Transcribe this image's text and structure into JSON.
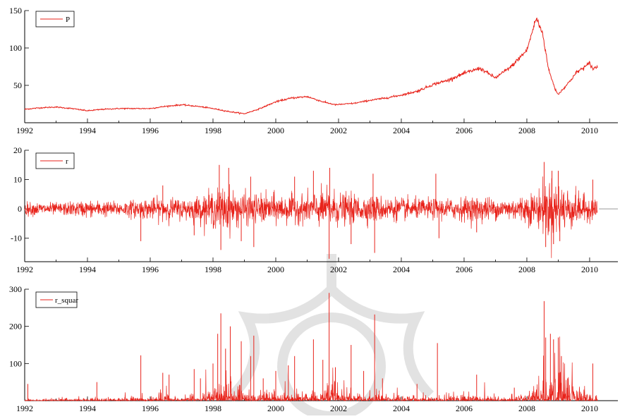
{
  "chart_data": [
    {
      "type": "line",
      "legend": "P",
      "legend_position": "top-left",
      "color": "#e8231b",
      "xlim": [
        1992,
        2010.9
      ],
      "ylim": [
        0,
        150
      ],
      "x_ticks": [
        1992,
        1994,
        1996,
        1998,
        2000,
        2002,
        2004,
        2006,
        2008,
        2010
      ],
      "y_ticks": [
        50,
        100,
        150
      ],
      "series": [
        {
          "name": "P",
          "x": [
            1992.0,
            1992.5,
            1993.0,
            1993.5,
            1994.0,
            1994.5,
            1995.0,
            1995.5,
            1996.0,
            1996.5,
            1997.0,
            1997.5,
            1998.0,
            1998.5,
            1999.0,
            1999.5,
            2000.0,
            2000.5,
            2001.0,
            2001.5,
            2001.9,
            2002.5,
            2003.0,
            2003.5,
            2004.0,
            2004.5,
            2005.0,
            2005.5,
            2006.0,
            2006.5,
            2007.0,
            2007.5,
            2008.0,
            2008.3,
            2008.5,
            2008.7,
            2008.9,
            2009.0,
            2009.3,
            2009.6,
            2009.9,
            2010.0,
            2010.1,
            2010.25
          ],
          "y": [
            18,
            20,
            21,
            19,
            16,
            18,
            19,
            19,
            19,
            22,
            24,
            22,
            19,
            15,
            12,
            19,
            28,
            33,
            35,
            28,
            24,
            26,
            30,
            33,
            37,
            42,
            51,
            57,
            66,
            73,
            60,
            75,
            97,
            140,
            120,
            70,
            45,
            38,
            52,
            68,
            76,
            80,
            72,
            75
          ]
        }
      ]
    },
    {
      "type": "line",
      "legend": "r",
      "legend_position": "top-left",
      "color": "#e8231b",
      "xlim": [
        1992,
        2010.9
      ],
      "ylim": [
        -18,
        20
      ],
      "x_ticks": [
        1992,
        1994,
        1996,
        1998,
        2000,
        2002,
        2004,
        2006,
        2008,
        2010
      ],
      "y_ticks": [
        -10,
        0,
        10,
        20
      ],
      "volatility_envelope": {
        "x": [
          1992.0,
          1993.0,
          1994.0,
          1995.0,
          1995.8,
          1996.5,
          1997.0,
          1997.6,
          1998.0,
          1998.4,
          1998.8,
          1999.2,
          2000.0,
          2000.7,
          2001.3,
          2001.7,
          2002.2,
          2002.8,
          2003.2,
          2003.8,
          2004.5,
          2005.2,
          2006.0,
          2006.6,
          2007.0,
          2007.6,
          2008.0,
          2008.4,
          2008.7,
          2008.9,
          2009.2,
          2009.6,
          2010.0,
          2010.25
        ],
        "y": [
          2,
          1.8,
          2.5,
          2.2,
          3,
          3.5,
          3,
          4,
          5.5,
          7,
          5,
          4.5,
          4.5,
          4,
          5,
          6,
          4.5,
          4,
          4,
          3.5,
          3,
          3,
          3.5,
          4,
          3,
          3.5,
          4.5,
          6,
          9,
          9,
          7,
          5,
          3.5,
          3
        ]
      },
      "extremes": [
        {
          "x": 1995.7,
          "y": -11
        },
        {
          "x": 1996.4,
          "y": 8
        },
        {
          "x": 1997.4,
          "y": -9
        },
        {
          "x": 1998.2,
          "y": 15
        },
        {
          "x": 1998.25,
          "y": -14
        },
        {
          "x": 1998.5,
          "y": 14
        },
        {
          "x": 1998.9,
          "y": -11
        },
        {
          "x": 1999.2,
          "y": 11
        },
        {
          "x": 1999.3,
          "y": -13
        },
        {
          "x": 2000.6,
          "y": 11
        },
        {
          "x": 2001.2,
          "y": 13
        },
        {
          "x": 2001.7,
          "y": -17
        },
        {
          "x": 2001.72,
          "y": 14
        },
        {
          "x": 2002.4,
          "y": -12
        },
        {
          "x": 2003.1,
          "y": 12
        },
        {
          "x": 2003.15,
          "y": -15
        },
        {
          "x": 2005.1,
          "y": 12
        },
        {
          "x": 2005.2,
          "y": -10
        },
        {
          "x": 2006.4,
          "y": -8
        },
        {
          "x": 2008.55,
          "y": 16
        },
        {
          "x": 2008.6,
          "y": -13
        },
        {
          "x": 2008.8,
          "y": 13
        },
        {
          "x": 2008.85,
          "y": -12
        },
        {
          "x": 2009.0,
          "y": 13
        },
        {
          "x": 2009.05,
          "y": -11
        },
        {
          "x": 2010.1,
          "y": 10
        }
      ],
      "baseline_tail": {
        "from": 2010.3,
        "to": 2010.9,
        "y": 0
      }
    },
    {
      "type": "line",
      "legend": "r_squar",
      "legend_position": "top-left",
      "color": "#e8231b",
      "xlim": [
        1992,
        2010.9
      ],
      "ylim": [
        0,
        300
      ],
      "x_ticks": [
        1992,
        1994,
        1996,
        1998,
        2000,
        2002,
        2004,
        2006,
        2008,
        2010
      ],
      "y_ticks": [
        100,
        200,
        300
      ],
      "spikes": [
        {
          "x": 1992.1,
          "y": 45
        },
        {
          "x": 1994.3,
          "y": 50
        },
        {
          "x": 1995.7,
          "y": 122
        },
        {
          "x": 1996.4,
          "y": 75
        },
        {
          "x": 1996.6,
          "y": 70
        },
        {
          "x": 1997.4,
          "y": 85
        },
        {
          "x": 1997.6,
          "y": 60
        },
        {
          "x": 1998.0,
          "y": 100
        },
        {
          "x": 1998.15,
          "y": 180
        },
        {
          "x": 1998.25,
          "y": 235
        },
        {
          "x": 1998.4,
          "y": 140
        },
        {
          "x": 1998.55,
          "y": 200
        },
        {
          "x": 1998.9,
          "y": 160
        },
        {
          "x": 1999.2,
          "y": 120
        },
        {
          "x": 1999.3,
          "y": 175
        },
        {
          "x": 1999.6,
          "y": 60
        },
        {
          "x": 2000.0,
          "y": 80
        },
        {
          "x": 2000.4,
          "y": 95
        },
        {
          "x": 2000.6,
          "y": 120
        },
        {
          "x": 2001.2,
          "y": 165
        },
        {
          "x": 2001.5,
          "y": 110
        },
        {
          "x": 2001.7,
          "y": 290
        },
        {
          "x": 2001.9,
          "y": 90
        },
        {
          "x": 2002.4,
          "y": 150
        },
        {
          "x": 2002.8,
          "y": 80
        },
        {
          "x": 2003.15,
          "y": 232
        },
        {
          "x": 2003.4,
          "y": 60
        },
        {
          "x": 2004.5,
          "y": 45
        },
        {
          "x": 2005.15,
          "y": 155
        },
        {
          "x": 2006.4,
          "y": 70
        },
        {
          "x": 2007.6,
          "y": 35
        },
        {
          "x": 2008.55,
          "y": 268
        },
        {
          "x": 2008.6,
          "y": 170
        },
        {
          "x": 2008.75,
          "y": 180
        },
        {
          "x": 2008.85,
          "y": 165
        },
        {
          "x": 2009.0,
          "y": 170
        },
        {
          "x": 2009.1,
          "y": 120
        },
        {
          "x": 2009.3,
          "y": 60
        },
        {
          "x": 2010.1,
          "y": 100
        }
      ]
    }
  ]
}
